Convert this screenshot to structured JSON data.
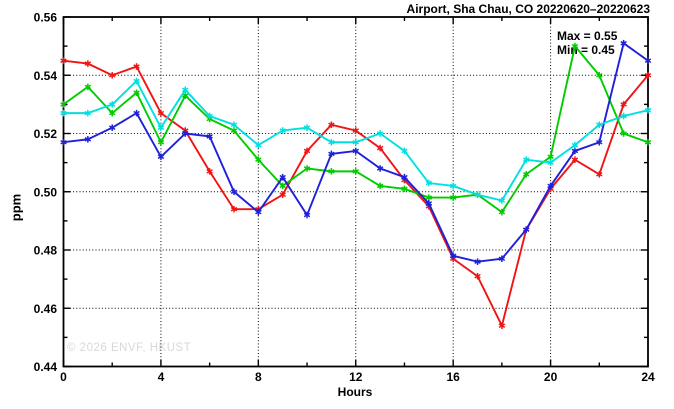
{
  "chart_data": {
    "type": "line",
    "title": "Airport, Sha Chau, CO 20220620–20220623",
    "legend": {
      "position": "top-right-inside",
      "lines": [
        "Max = 0.55",
        "Min = 0.45"
      ]
    },
    "xlabel": "Hours",
    "ylabel": "ppm",
    "watermark": "© 2026 ENVF, HKUST",
    "xlim": [
      0,
      24
    ],
    "ylim": [
      0.44,
      0.56
    ],
    "x_major_ticks": [
      0,
      4,
      8,
      12,
      16,
      20,
      24
    ],
    "x_tick_labels": [
      "0",
      "4",
      "8",
      "12",
      "16",
      "20",
      "24"
    ],
    "x_minor_ticks": [
      2,
      6,
      10,
      14,
      18,
      22
    ],
    "y_major_ticks": [
      0.44,
      0.46,
      0.48,
      0.5,
      0.52,
      0.54,
      0.56
    ],
    "y_tick_labels": [
      "0.44",
      "0.46",
      "0.48",
      "0.50",
      "0.52",
      "0.54",
      "0.56"
    ],
    "y_minor_ticks": [
      0.45,
      0.47,
      0.49,
      0.51,
      0.53,
      0.55
    ],
    "grid": "dotted-at-major-ticks",
    "marker": "asterisk",
    "x": [
      0,
      1,
      2,
      3,
      4,
      5,
      6,
      7,
      8,
      9,
      10,
      11,
      12,
      13,
      14,
      15,
      16,
      17,
      18,
      19,
      20,
      21,
      22,
      23,
      24
    ],
    "series": [
      {
        "name": "red-series",
        "color": "#f01414",
        "values": [
          0.545,
          0.544,
          0.54,
          0.543,
          0.527,
          0.521,
          0.507,
          0.494,
          0.494,
          0.499,
          0.514,
          0.523,
          0.521,
          0.515,
          0.504,
          0.495,
          0.477,
          0.471,
          0.454,
          0.487,
          0.501,
          0.511,
          0.506,
          0.53,
          0.54
        ]
      },
      {
        "name": "green-series",
        "color": "#00cc00",
        "values": [
          0.53,
          0.536,
          0.527,
          0.534,
          0.517,
          0.533,
          0.525,
          0.521,
          0.511,
          0.502,
          0.508,
          0.507,
          0.507,
          0.502,
          0.501,
          0.498,
          0.498,
          0.499,
          0.493,
          0.506,
          0.512,
          0.55,
          0.54,
          0.52,
          0.517
        ]
      },
      {
        "name": "blue-series",
        "color": "#2020d8",
        "values": [
          0.517,
          0.518,
          0.522,
          0.527,
          0.512,
          0.52,
          0.519,
          0.5,
          0.493,
          0.505,
          0.492,
          0.513,
          0.514,
          0.508,
          0.505,
          0.496,
          0.478,
          0.476,
          0.477,
          0.487,
          0.502,
          0.514,
          0.517,
          0.551,
          0.545
        ]
      },
      {
        "name": "cyan-series",
        "color": "#00e0e0",
        "values": [
          0.527,
          0.527,
          0.53,
          0.538,
          0.522,
          0.535,
          0.526,
          0.523,
          0.516,
          0.521,
          0.522,
          0.517,
          0.517,
          0.52,
          0.514,
          0.503,
          0.502,
          0.499,
          0.497,
          0.511,
          0.51,
          0.516,
          0.523,
          0.526,
          0.528
        ]
      }
    ]
  }
}
